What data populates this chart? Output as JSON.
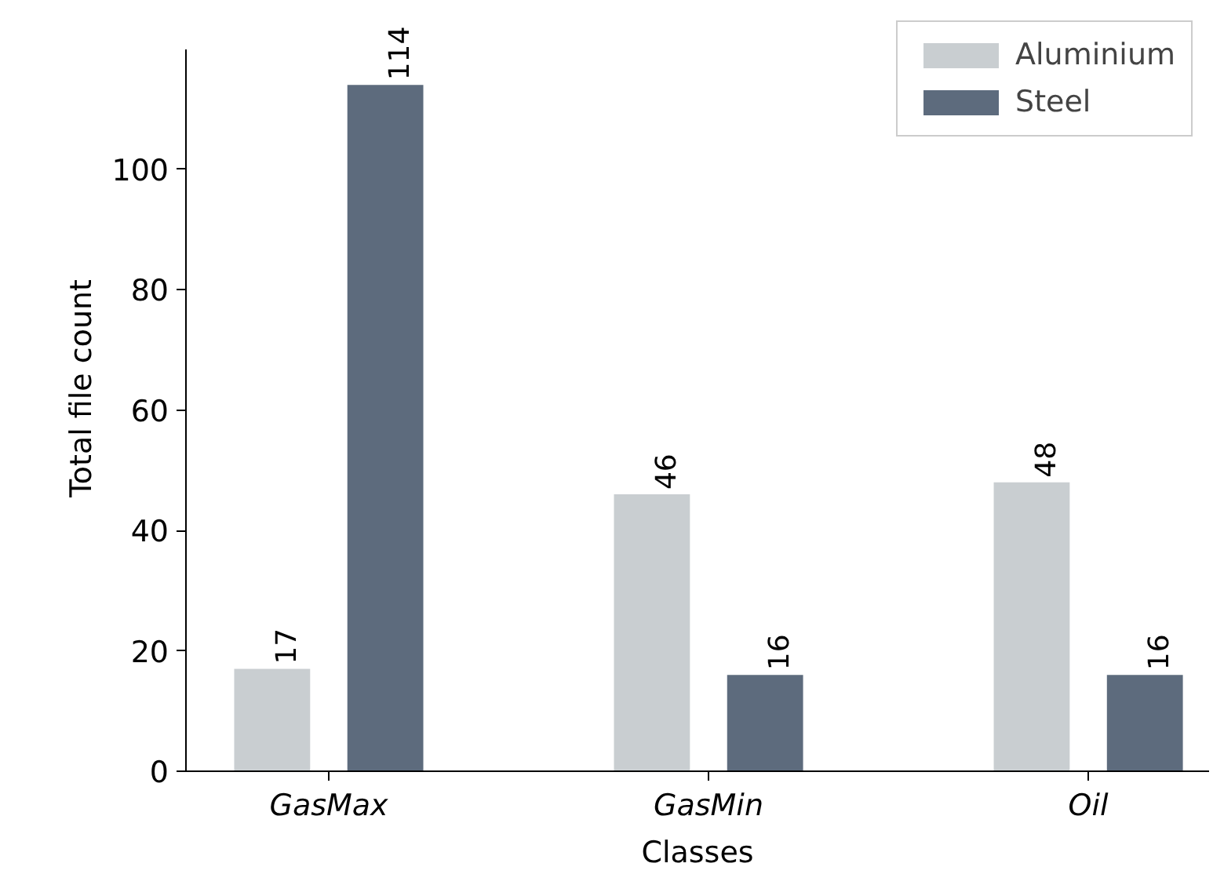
{
  "chart_data": {
    "type": "bar",
    "xlabel": "Classes",
    "ylabel": "Total file count",
    "categories": [
      "GasMax",
      "GasMin",
      "Oil"
    ],
    "series": [
      {
        "name": "Aluminium",
        "color": "#c9ced1",
        "values": [
          17,
          46,
          48
        ]
      },
      {
        "name": "Steel",
        "color": "#5d6b7d",
        "values": [
          114,
          16,
          16
        ]
      }
    ],
    "ylim": [
      0,
      120
    ],
    "yticks": [
      0,
      20,
      40,
      60,
      80,
      100
    ],
    "data_labels": true,
    "legend": "top right",
    "grid": false
  }
}
